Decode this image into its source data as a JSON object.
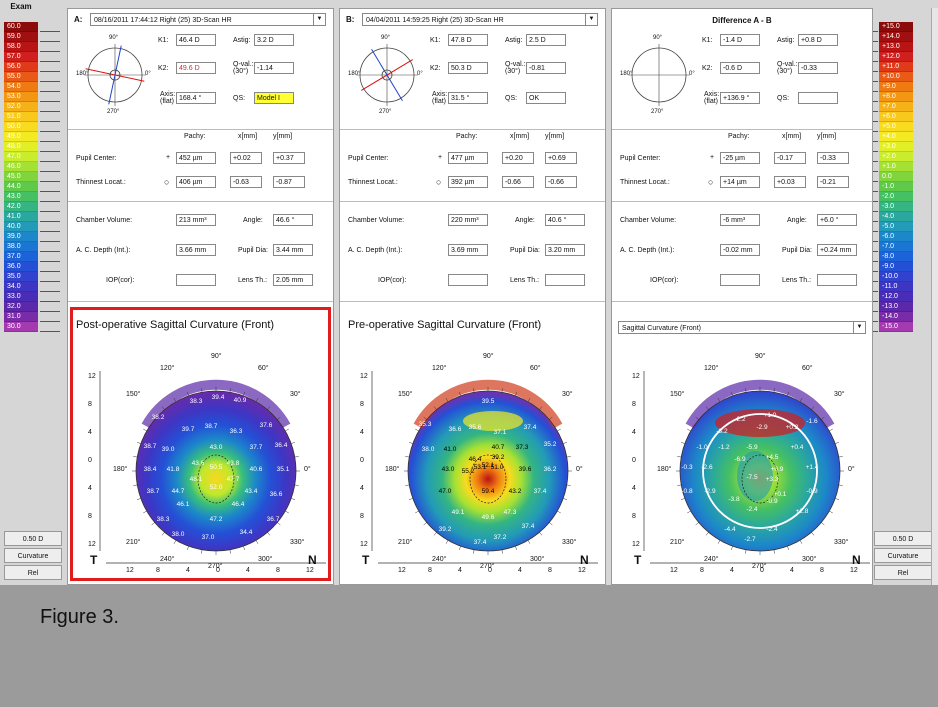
{
  "caption": "Figure 3.",
  "scale_left": {
    "header": "Exam",
    "values": [
      "60.0",
      "59.0",
      "58.0",
      "57.0",
      "56.0",
      "55.0",
      "54.0",
      "53.0",
      "52.0",
      "51.0",
      "50.0",
      "49.0",
      "48.0",
      "47.0",
      "46.0",
      "45.0",
      "44.0",
      "43.0",
      "42.0",
      "41.0",
      "40.0",
      "39.0",
      "38.0",
      "37.0",
      "36.0",
      "35.0",
      "34.0",
      "33.0",
      "32.0",
      "31.0",
      "30.0"
    ],
    "step": "0.50 D",
    "map_type": "Curvature",
    "mode": "Rel"
  },
  "scale_right": {
    "values": [
      "+15.0",
      "+14.0",
      "+13.0",
      "+12.0",
      "+11.0",
      "+10.0",
      "+9.0",
      "+8.0",
      "+7.0",
      "+6.0",
      "+5.0",
      "+4.0",
      "+3.0",
      "+2.0",
      "+1.0",
      "0.0",
      "-1.0",
      "-2.0",
      "-3.0",
      "-4.0",
      "-5.0",
      "-6.0",
      "-7.0",
      "-8.0",
      "-9.0",
      "-10.0",
      "-11.0",
      "-12.0",
      "-13.0",
      "-14.0",
      "-15.0"
    ],
    "step": "0.50 D",
    "map_type": "Curvature",
    "mode": "Rel"
  },
  "scale_colors": [
    "#8b0a0a",
    "#a11010",
    "#b91414",
    "#d01f1f",
    "#e03a1a",
    "#e85a15",
    "#ef7a12",
    "#f39614",
    "#f6b118",
    "#f8c81c",
    "#f8db1e",
    "#f3ea22",
    "#e3ef26",
    "#c9ec2c",
    "#a5e133",
    "#80d53c",
    "#5fca4a",
    "#45c063",
    "#34b582",
    "#2aa79f",
    "#229ab8",
    "#1c88c9",
    "#1a75d3",
    "#1c62d8",
    "#2450d6",
    "#3142cf",
    "#3d36c4",
    "#4a2db6",
    "#5a28a8",
    "#7a2ca8",
    "#a53ab0"
  ],
  "panels": [
    {
      "letter": "A:",
      "exam": "08/16/2011 17:44:12 Right (25) 3D-Scan HR",
      "k1": "46.4 D",
      "k2": "49.6 D",
      "astig": "3.2 D",
      "qval": "-1.14",
      "axis": "168.4 °",
      "qs": "Model I",
      "pachy_center": "452 µm",
      "pupil_x": "+0.02",
      "pupil_y": "+0.37",
      "pachy_thin": "406 µm",
      "thin_x": "-0.63",
      "thin_y": "-0.87",
      "chamber_volume": "213 mm³",
      "angle": "46.6 °",
      "ac_depth": "3.66 mm",
      "pupil_dia": "3.44 mm",
      "iop": "",
      "lens_th": "2.05 mm",
      "map_title": "Post-operative Sagittal Curvature (Front)",
      "map_values": [
        "38.3",
        "39.4",
        "40.9",
        "38.2",
        "39.7",
        "38.7",
        "36.3",
        "37.6",
        "38.7",
        "39.0",
        "43.0",
        "37.7",
        "36.4",
        "38.4",
        "41.8",
        "43.6",
        "50.5",
        "43.8",
        "40.6",
        "35.1",
        "48.1",
        "47.7",
        "38.7",
        "44.7",
        "52.0",
        "43.4",
        "36.6",
        "46.1",
        "46.4",
        "38.3",
        "47.2",
        "38.0",
        "37.0",
        "34.4",
        "36.7"
      ]
    },
    {
      "letter": "B:",
      "exam": "04/04/2011 14:59:25 Right (25) 3D-Scan HR",
      "k1": "47.8 D",
      "k2": "50.3 D",
      "astig": "2.5 D",
      "qval": "-0.81",
      "axis": "31.5 °",
      "qs": "OK",
      "pachy_center": "477 µm",
      "pupil_x": "+0.20",
      "pupil_y": "+0.69",
      "pachy_thin": "392 µm",
      "thin_x": "-0.66",
      "thin_y": "-0.66",
      "chamber_volume": "220 mm³",
      "angle": "40.6 °",
      "ac_depth": "3.69 mm",
      "pupil_dia": "3.20 mm",
      "iop": "",
      "lens_th": "",
      "map_title": "Pre-operative Sagittal Curvature (Front)",
      "map_values": [
        "39.5",
        "35.3",
        "36.6",
        "35.6",
        "37.1",
        "37.4",
        "38.0",
        "41.0",
        "40.7",
        "37.3",
        "35.2",
        "46.4",
        "52.1",
        "39.2",
        "43.0",
        "55.2",
        "53.1",
        "51.0",
        "39.6",
        "36.2",
        "47.0",
        "59.4",
        "43.2",
        "37.4",
        "49.1",
        "49.6",
        "47.3",
        "39.2",
        "37.4",
        "37.2",
        "37.4"
      ]
    }
  ],
  "diff_panel": {
    "title": "Difference A - B",
    "k1": "-1.4 D",
    "k2": "-0.6 D",
    "astig": "+0.8 D",
    "qval": "-0.33",
    "axis": "+136.9 °",
    "qs": "",
    "pachy_center": "-25 µm",
    "pupil_x": "-0.17",
    "pupil_y": "-0.33",
    "pachy_thin": "+14 µm",
    "thin_x": "+0.03",
    "thin_y": "-0.21",
    "chamber_volume": "-6 mm³",
    "angle": "+6.0 °",
    "ac_depth": "-0.02 mm",
    "pupil_dia": "+0.24 mm",
    "iop": "",
    "lens_th": "",
    "map_select": "Sagittal Curvature (Front)",
    "map_values": [
      "-2.2",
      "+1.0",
      "-3.2",
      "-2.9",
      "+0.2",
      "-1.6",
      "-1.0",
      "-1.2",
      "-5.9",
      "+4.5",
      "+0.4",
      "-0.3",
      "-2.6",
      "-6.9",
      "+0.9",
      "+1.4",
      "-7.5",
      "+3.3",
      "-0.8",
      "-2.9",
      "-3.8",
      "+0.1",
      "-0.9",
      "-2.4",
      "-0.9",
      "+2.8",
      "-4.4",
      "-2.7",
      "-2.4"
    ]
  },
  "labels": {
    "k1": "K1:",
    "k2": "K2:",
    "astig": "Astig:",
    "qval": "Q-val.:",
    "qval_sub": "(30°)",
    "axis": "Axis:",
    "axis_sub": "(flat)",
    "qs": "QS:",
    "pachy": "Pachy:",
    "xmm": "x[mm]",
    "ymm": "y[mm]",
    "pupil_center": "Pupil Center:",
    "thinnest": "Thinnest Locat.:",
    "chamber_volume": "Chamber Volume:",
    "angle": "Angle:",
    "ac_depth": "A. C. Depth (Int.):",
    "pupil_dia": "Pupil Dia:",
    "iop": "IOP(cor):",
    "lens_th": "Lens Th.:",
    "deg90": "90°",
    "deg270": "270°",
    "deg0": "0°",
    "deg180": "180°",
    "deg120": "120°",
    "deg60": "60°",
    "deg150": "150°",
    "deg30": "30°",
    "deg210": "210°",
    "deg330": "330°",
    "deg240": "240°",
    "deg300": "300°",
    "temporal": "T",
    "nasal": "N",
    "xticks": [
      "12",
      "8",
      "4",
      "0",
      "4",
      "8",
      "12"
    ],
    "yticks": [
      "12",
      "8",
      "4",
      "0",
      "4",
      "8",
      "12"
    ]
  }
}
